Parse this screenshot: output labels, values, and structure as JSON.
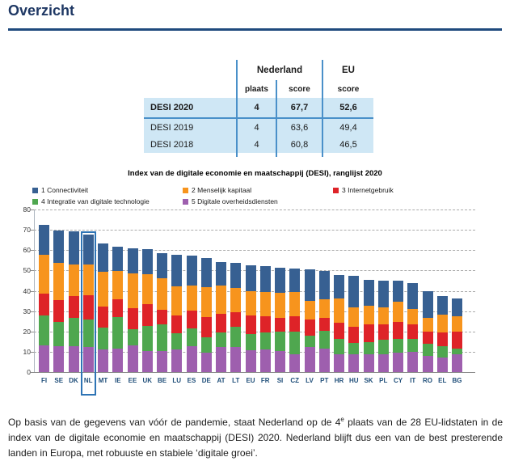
{
  "page": {
    "title": "Overzicht"
  },
  "summary_table": {
    "col_groups": {
      "nederland": "Nederland",
      "eu": "EU"
    },
    "sub_headers": {
      "plaats": "plaats",
      "score": "score",
      "eu_score": "score"
    },
    "rows": [
      {
        "label": "DESI 2020",
        "plaats": "4",
        "score": "67,7",
        "eu_score": "52,6"
      },
      {
        "label": "DESI 2019",
        "plaats": "4",
        "score": "63,6",
        "eu_score": "49,4"
      },
      {
        "label": "DESI 2018",
        "plaats": "4",
        "score": "60,8",
        "eu_score": "46,5"
      }
    ]
  },
  "chart_data": {
    "type": "bar",
    "stacked": true,
    "title": "Index van de digitale economie en maatschappij (DESI), ranglijst 2020",
    "xlabel": "",
    "ylabel": "",
    "ylim": [
      0,
      80
    ],
    "yticks": [
      0,
      10,
      20,
      30,
      40,
      50,
      60,
      70,
      80
    ],
    "grid": true,
    "legend_position": "top",
    "highlighted_category": "NL",
    "highlight_color": "#2E74B5",
    "categories": [
      "FI",
      "SE",
      "DK",
      "NL",
      "MT",
      "IE",
      "EE",
      "UK",
      "BE",
      "LU",
      "ES",
      "DE",
      "AT",
      "LT",
      "EU",
      "FR",
      "SI",
      "CZ",
      "LV",
      "PT",
      "HR",
      "HU",
      "SK",
      "PL",
      "CY",
      "IT",
      "RO",
      "EL",
      "BG"
    ],
    "totals": [
      72.3,
      69.7,
      69.1,
      67.7,
      63.1,
      61.8,
      61.1,
      60.4,
      58.7,
      57.9,
      57.5,
      56.1,
      54.3,
      53.9,
      52.6,
      52.2,
      51.2,
      50.8,
      50.5,
      49.6,
      47.6,
      47.5,
      45.2,
      45.0,
      44.9,
      43.6,
      40.0,
      37.3,
      36.4
    ],
    "series": [
      {
        "name": "1 Connectiviteit",
        "color": "#376092",
        "values": [
          14.5,
          16.0,
          16.1,
          14.7,
          13.8,
          11.9,
          12.6,
          12.2,
          12.7,
          15.8,
          15.0,
          14.4,
          11.8,
          12.5,
          12.8,
          12.8,
          12.1,
          11.4,
          15.4,
          13.7,
          11.2,
          15.6,
          12.7,
          13.1,
          10.3,
          12.4,
          13.3,
          9.0,
          9.1
        ]
      },
      {
        "name": "2 Menselijk kapitaal",
        "color": "#F7941D",
        "values": [
          19.3,
          18.2,
          15.5,
          15.3,
          17.1,
          14.1,
          17.0,
          14.6,
          15.5,
          14.4,
          12.2,
          14.7,
          13.9,
          11.8,
          12.1,
          12.1,
          12.4,
          12.0,
          9.1,
          9.2,
          12.3,
          9.5,
          9.2,
          8.6,
          10.0,
          7.7,
          6.7,
          8.9,
          7.2
        ]
      },
      {
        "name": "3 Internetgebruik",
        "color": "#DE2328",
        "values": [
          10.6,
          10.9,
          10.8,
          12.0,
          10.4,
          8.8,
          10.4,
          10.9,
          7.2,
          8.6,
          8.9,
          9.8,
          9.2,
          7.2,
          8.8,
          7.9,
          6.9,
          7.3,
          8.2,
          6.5,
          7.8,
          8.2,
          8.5,
          7.4,
          8.1,
          7.2,
          6.1,
          6.5,
          8.6
        ]
      },
      {
        "name": "4 Integratie van digitale technologie",
        "color": "#4FA74F",
        "values": [
          14.7,
          11.8,
          13.9,
          13.4,
          10.5,
          15.5,
          7.8,
          12.5,
          12.9,
          8.1,
          8.6,
          7.6,
          7.1,
          10.1,
          8.3,
          8.1,
          9.4,
          11.2,
          5.5,
          8.7,
          7.6,
          5.3,
          6.1,
          7.0,
          6.9,
          6.3,
          5.9,
          5.9,
          2.8
        ]
      },
      {
        "name": "5 Digitale overheidsdiensten",
        "color": "#9E5FAE",
        "values": [
          13.2,
          12.8,
          12.8,
          12.3,
          11.3,
          11.5,
          13.3,
          10.2,
          10.4,
          11.0,
          12.8,
          9.6,
          12.3,
          12.3,
          10.6,
          11.3,
          10.4,
          8.9,
          12.3,
          11.5,
          8.7,
          8.9,
          8.7,
          8.9,
          9.6,
          10.0,
          8.0,
          7.0,
          8.7
        ]
      }
    ],
    "stack_order_bottom_to_top": [
      "5 Digitale overheidsdiensten",
      "4 Integratie van digitale technologie",
      "3 Internetgebruik",
      "2 Menselijk kapitaal",
      "1 Connectiviteit"
    ]
  },
  "footer": {
    "before_sup": "Op basis van de gegevens van vóór de pandemie, staat Nederland op de 4",
    "sup": "e",
    "after_sup": " plaats van de 28 EU-lidstaten in de index van de digitale economie en maatschappij (DESI) 2020. Nederland blijft dus een van de best presterende landen in Europa, met robuuste en stabiele ‘digitale groei’."
  }
}
